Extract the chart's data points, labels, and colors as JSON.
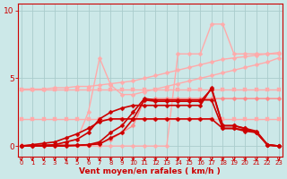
{
  "bg_color": "#cce8e8",
  "grid_color": "#aacccc",
  "xlabel": "Vent moyen/en rafales ( km/h )",
  "xlabel_color": "#cc0000",
  "tick_color": "#cc0000",
  "ytick_labels": [
    "0",
    "5",
    "10"
  ],
  "ytick_vals": [
    0,
    5,
    10
  ],
  "xtick_vals": [
    0,
    1,
    2,
    3,
    4,
    5,
    6,
    7,
    8,
    9,
    10,
    11,
    12,
    13,
    14,
    15,
    16,
    17,
    18,
    19,
    20,
    21,
    22,
    23
  ],
  "xmin": -0.3,
  "xmax": 23.3,
  "ymin": -0.8,
  "ymax": 10.5,
  "series": [
    {
      "x": [
        0,
        1,
        2,
        3,
        4,
        5,
        6,
        7,
        8,
        9,
        10,
        11,
        12,
        13,
        14,
        15,
        16,
        17,
        18,
        19,
        20,
        21,
        22,
        23
      ],
      "y": [
        2.0,
        2.0,
        2.0,
        2.0,
        2.0,
        2.0,
        2.0,
        2.0,
        2.0,
        2.0,
        2.0,
        2.0,
        2.0,
        2.0,
        2.0,
        2.0,
        2.0,
        2.0,
        2.0,
        2.0,
        2.0,
        2.0,
        2.0,
        2.0
      ],
      "color": "#ffaaaa",
      "lw": 1.0,
      "marker": "s",
      "ms": 2.5
    },
    {
      "x": [
        0,
        1,
        2,
        3,
        4,
        5,
        6,
        7,
        8,
        9,
        10,
        11,
        12,
        13,
        14,
        15,
        16,
        17,
        18,
        19,
        20,
        21,
        22,
        23
      ],
      "y": [
        4.2,
        4.2,
        4.2,
        4.2,
        4.2,
        4.2,
        4.2,
        4.2,
        4.2,
        4.2,
        4.2,
        4.2,
        4.2,
        4.2,
        4.2,
        4.2,
        4.2,
        4.2,
        4.2,
        4.2,
        4.2,
        4.2,
        4.2,
        4.2
      ],
      "color": "#ffaaaa",
      "lw": 1.0,
      "marker": "s",
      "ms": 2.5
    },
    {
      "x": [
        0,
        1,
        2,
        3,
        4,
        5,
        6,
        7,
        8,
        9,
        10,
        11,
        12,
        13,
        14,
        15,
        16,
        17,
        18,
        19,
        20,
        21,
        22,
        23
      ],
      "y": [
        0.0,
        0.0,
        0.0,
        0.0,
        0.0,
        0.0,
        0.0,
        0.0,
        0.0,
        0.0,
        0.0,
        0.0,
        0.0,
        0.0,
        6.8,
        6.8,
        6.8,
        9.0,
        9.0,
        6.8,
        6.8,
        6.8,
        6.8,
        6.8
      ],
      "color": "#ffaaaa",
      "lw": 1.0,
      "marker": "D",
      "ms": 2.5
    },
    {
      "x": [
        0,
        1,
        2,
        3,
        4,
        5,
        6,
        7,
        8,
        9,
        10,
        11,
        12,
        13,
        14,
        15,
        16,
        17,
        18,
        19,
        20,
        21,
        22,
        23
      ],
      "y": [
        0.0,
        0.0,
        0.0,
        0.0,
        0.3,
        0.5,
        2.5,
        6.5,
        4.5,
        3.8,
        3.8,
        4.0,
        4.2,
        4.4,
        4.6,
        4.8,
        5.0,
        5.2,
        5.4,
        5.6,
        5.8,
        6.0,
        6.2,
        6.5
      ],
      "color": "#ffaaaa",
      "lw": 1.0,
      "marker": "D",
      "ms": 2.5
    },
    {
      "x": [
        0,
        1,
        2,
        3,
        4,
        5,
        6,
        7,
        8,
        9,
        10,
        11,
        12,
        13,
        14,
        15,
        16,
        17,
        18,
        19,
        20,
        21,
        22,
        23
      ],
      "y": [
        4.2,
        4.2,
        4.2,
        4.3,
        4.3,
        4.4,
        4.4,
        4.5,
        4.6,
        4.7,
        4.8,
        5.0,
        5.2,
        5.4,
        5.6,
        5.8,
        6.0,
        6.2,
        6.4,
        6.5,
        6.6,
        6.7,
        6.8,
        6.9
      ],
      "color": "#ffaaaa",
      "lw": 1.0,
      "marker": "D",
      "ms": 2.5
    },
    {
      "x": [
        0,
        1,
        2,
        3,
        4,
        5,
        6,
        7,
        8,
        9,
        10,
        11,
        12,
        13,
        14,
        15,
        16,
        17,
        18,
        19,
        20,
        21,
        22,
        23
      ],
      "y": [
        0.05,
        0.05,
        0.05,
        0.05,
        0.05,
        0.05,
        0.1,
        0.2,
        0.5,
        1.0,
        1.5,
        3.4,
        3.5,
        3.5,
        3.5,
        3.5,
        3.5,
        3.5,
        3.5,
        3.5,
        3.5,
        3.5,
        3.5,
        3.5
      ],
      "color": "#ff8888",
      "lw": 1.0,
      "marker": "D",
      "ms": 2.5
    },
    {
      "x": [
        0,
        1,
        2,
        3,
        4,
        5,
        6,
        7,
        8,
        9,
        10,
        11,
        12,
        13,
        14,
        15,
        16,
        17,
        18,
        19,
        20,
        21,
        22,
        23
      ],
      "y": [
        0.0,
        0.05,
        0.05,
        0.05,
        0.05,
        0.05,
        0.1,
        0.15,
        0.6,
        1.0,
        2.0,
        3.4,
        3.3,
        3.3,
        3.3,
        3.3,
        3.3,
        4.2,
        1.5,
        1.5,
        1.3,
        1.1,
        0.1,
        0.0
      ],
      "color": "#cc0000",
      "lw": 1.2,
      "marker": "D",
      "ms": 2.5
    },
    {
      "x": [
        0,
        1,
        2,
        3,
        4,
        5,
        6,
        7,
        8,
        9,
        10,
        11,
        12,
        13,
        14,
        15,
        16,
        17,
        18,
        19,
        20,
        21,
        22,
        23
      ],
      "y": [
        0.0,
        0.0,
        0.0,
        0.0,
        0.0,
        0.05,
        0.1,
        0.3,
        1.0,
        1.5,
        2.5,
        3.5,
        3.4,
        3.4,
        3.4,
        3.4,
        3.4,
        3.4,
        1.3,
        1.3,
        1.1,
        1.0,
        0.05,
        0.0
      ],
      "color": "#cc0000",
      "lw": 1.2,
      "marker": "D",
      "ms": 2.5
    },
    {
      "x": [
        0,
        1,
        2,
        3,
        4,
        5,
        6,
        7,
        8,
        9,
        10,
        11,
        12,
        13,
        14,
        15,
        16,
        17,
        18,
        19,
        20,
        21,
        22,
        23
      ],
      "y": [
        0.0,
        0.0,
        0.05,
        0.1,
        0.3,
        0.5,
        1.0,
        2.0,
        2.5,
        2.8,
        3.0,
        3.0,
        3.0,
        3.0,
        3.0,
        3.0,
        3.0,
        4.3,
        1.5,
        1.5,
        1.3,
        1.0,
        0.1,
        0.0
      ],
      "color": "#cc0000",
      "lw": 1.2,
      "marker": "D",
      "ms": 2.5
    },
    {
      "x": [
        0,
        1,
        2,
        3,
        4,
        5,
        6,
        7,
        8,
        9,
        10,
        11,
        12,
        13,
        14,
        15,
        16,
        17,
        18,
        19,
        20,
        21,
        22,
        23
      ],
      "y": [
        0.0,
        0.1,
        0.2,
        0.3,
        0.6,
        0.9,
        1.3,
        1.8,
        2.0,
        2.0,
        2.0,
        2.0,
        2.0,
        2.0,
        2.0,
        2.0,
        2.0,
        2.0,
        1.3,
        1.3,
        1.2,
        1.0,
        0.1,
        0.0
      ],
      "color": "#cc0000",
      "lw": 1.2,
      "marker": "D",
      "ms": 2.5
    }
  ]
}
